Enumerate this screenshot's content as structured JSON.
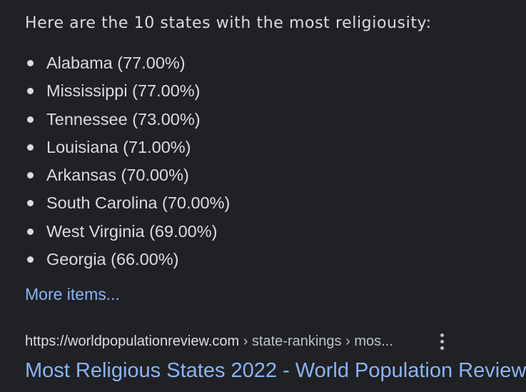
{
  "snippet": {
    "heading": "Here are the 10 states with the most religiousity:",
    "items": [
      "Alabama (77.00%)",
      "Mississippi (77.00%)",
      "Tennessee (73.00%)",
      "Louisiana (71.00%)",
      "Arkansas (70.00%)",
      "South Carolina (70.00%)",
      "West Virginia (69.00%)",
      "Georgia (66.00%)"
    ],
    "more_items_label": "More items..."
  },
  "result": {
    "cite_domain": "https://worldpopulationreview.com",
    "cite_path": " › state-rankings › mos...",
    "menu_icon": "more-vert-icon",
    "title": "Most Religious States 2022 - World Population Review"
  },
  "colors": {
    "background": "#202124",
    "text": "#dadce0",
    "link": "#8ab4f8",
    "muted": "#bdc1c6"
  }
}
